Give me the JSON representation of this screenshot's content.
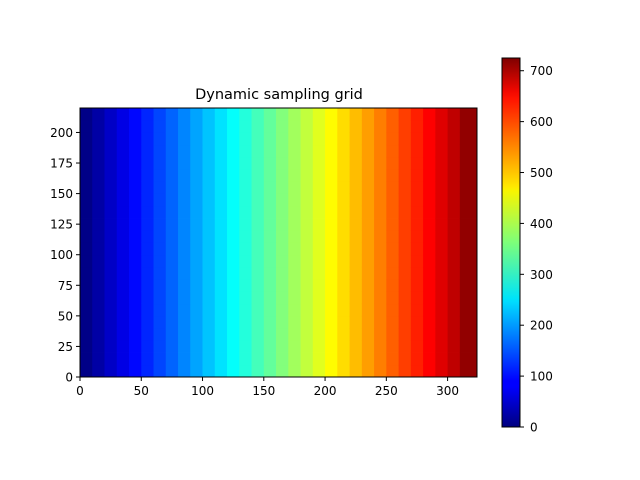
{
  "chart_data": {
    "type": "heatmap",
    "title": "Dynamic sampling grid",
    "xlabel": "",
    "ylabel": "",
    "colormap": "jet",
    "xlim": [
      0,
      324
    ],
    "ylim": [
      0,
      220
    ],
    "x_ticks": [
      0,
      50,
      100,
      150,
      200,
      250,
      300
    ],
    "y_ticks": [
      0,
      25,
      50,
      75,
      100,
      125,
      150,
      175,
      200
    ],
    "x_edges": [
      0,
      10,
      20,
      30,
      40,
      50,
      60,
      70,
      80,
      90,
      100,
      110,
      120,
      130,
      140,
      150,
      160,
      170,
      180,
      190,
      200,
      210,
      220,
      230,
      240,
      250,
      260,
      270,
      280,
      290,
      300,
      310,
      324
    ],
    "y_edges": [
      0,
      10,
      20,
      30,
      40,
      50,
      60,
      70,
      80,
      90,
      100,
      110,
      120,
      130,
      140,
      150,
      160,
      170,
      180,
      190,
      200,
      210,
      220
    ],
    "column_values": [
      5,
      27,
      50,
      72,
      95,
      117,
      140,
      162,
      185,
      207,
      230,
      252,
      275,
      297,
      320,
      342,
      365,
      387,
      410,
      432,
      455,
      477,
      500,
      522,
      545,
      567,
      590,
      612,
      635,
      657,
      680,
      712
    ],
    "colorbar": {
      "range": [
        0,
        725
      ],
      "ticks": [
        0,
        100,
        200,
        300,
        400,
        500,
        600,
        700
      ]
    },
    "grid": false,
    "legend": "none"
  }
}
